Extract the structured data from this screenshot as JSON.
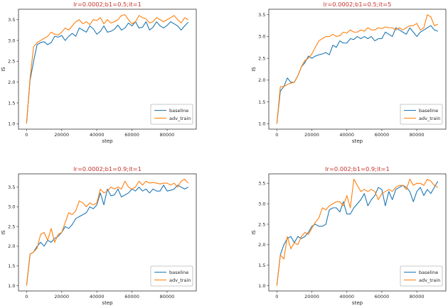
{
  "figure": {
    "background": "#ffffff",
    "colors": {
      "title": "#c5332b",
      "baseline": "#1f77b4",
      "adv_train": "#ff7f0e",
      "text": "#262626",
      "spine": "#4a4a4a",
      "legend_border": "#b9b9b9"
    }
  },
  "chart_data": [
    {
      "type": "line",
      "title": "lr=0.0002;b1=0.5;it=1",
      "xlabel": "step",
      "ylabel": "IS",
      "xlim": [
        -4600,
        96600
      ],
      "ylim": [
        0.869,
        3.751
      ],
      "grid": false,
      "legend_position": "lower right",
      "legend": [
        "baseline",
        "adv_train"
      ],
      "xticks": [
        [
          0,
          "0"
        ],
        [
          20000,
          "20000"
        ],
        [
          40000,
          "40000"
        ],
        [
          60000,
          "60000"
        ],
        [
          80000,
          "80000"
        ]
      ],
      "yticks": [
        [
          1.0,
          "1.0"
        ],
        [
          1.5,
          "1.5"
        ],
        [
          2.0,
          "2.0"
        ],
        [
          2.5,
          "2.5"
        ],
        [
          3.0,
          "3.0"
        ],
        [
          3.5,
          "3.5"
        ]
      ],
      "x": [
        0,
        2000,
        4000,
        6000,
        8000,
        10000,
        12000,
        14000,
        16000,
        18000,
        20000,
        22000,
        24000,
        26000,
        28000,
        30000,
        32000,
        34000,
        36000,
        38000,
        40000,
        42000,
        44000,
        46000,
        48000,
        50000,
        52000,
        54000,
        56000,
        58000,
        60000,
        62000,
        64000,
        66000,
        68000,
        70000,
        72000,
        74000,
        76000,
        78000,
        80000,
        82000,
        84000,
        86000,
        88000,
        90000,
        92000
      ],
      "series": [
        {
          "name": "baseline",
          "color": "#1f77b4",
          "values": [
            1.02,
            2.05,
            2.5,
            2.9,
            2.95,
            2.97,
            2.9,
            2.95,
            3.1,
            3.08,
            3.12,
            3.0,
            3.1,
            3.17,
            3.1,
            3.3,
            3.25,
            3.2,
            3.35,
            3.28,
            3.15,
            3.22,
            3.35,
            3.2,
            3.22,
            3.27,
            3.37,
            3.25,
            3.3,
            3.42,
            3.35,
            3.45,
            3.3,
            3.32,
            3.45,
            3.25,
            3.32,
            3.45,
            3.35,
            3.3,
            3.36,
            3.45,
            3.4,
            3.35,
            3.25,
            3.35,
            3.44
          ]
        },
        {
          "name": "adv_train",
          "color": "#ff7f0e",
          "values": [
            1.0,
            2.1,
            2.85,
            2.95,
            3.0,
            3.05,
            3.1,
            3.2,
            3.15,
            3.13,
            3.2,
            3.3,
            3.25,
            3.35,
            3.45,
            3.5,
            3.4,
            3.45,
            3.38,
            3.5,
            3.48,
            3.55,
            3.4,
            3.5,
            3.42,
            3.45,
            3.5,
            3.6,
            3.62,
            3.5,
            3.4,
            3.45,
            3.6,
            3.55,
            3.52,
            3.42,
            3.45,
            3.55,
            3.5,
            3.45,
            3.5,
            3.55,
            3.6,
            3.5,
            3.42,
            3.55,
            3.5
          ]
        }
      ]
    },
    {
      "type": "line",
      "title": "lr=0.0002;b1=0.5;it=5",
      "xlabel": "step",
      "ylabel": "IS",
      "xlim": [
        -4600,
        96600
      ],
      "ylim": [
        0.875,
        3.625
      ],
      "grid": false,
      "legend_position": "lower right",
      "legend": [
        "baseline",
        "adv_train"
      ],
      "xticks": [
        [
          0,
          "0"
        ],
        [
          20000,
          "20000"
        ],
        [
          40000,
          "40000"
        ],
        [
          60000,
          "60000"
        ],
        [
          80000,
          "80000"
        ]
      ],
      "yticks": [
        [
          1.0,
          "1.0"
        ],
        [
          1.5,
          "1.5"
        ],
        [
          2.0,
          "2.0"
        ],
        [
          2.5,
          "2.5"
        ],
        [
          3.0,
          "3.0"
        ],
        [
          3.5,
          "3.5"
        ]
      ],
      "x": [
        0,
        2000,
        4000,
        6000,
        8000,
        10000,
        12000,
        14000,
        16000,
        18000,
        20000,
        22000,
        24000,
        26000,
        28000,
        30000,
        32000,
        34000,
        36000,
        38000,
        40000,
        42000,
        44000,
        46000,
        48000,
        50000,
        52000,
        54000,
        56000,
        58000,
        60000,
        62000,
        64000,
        66000,
        68000,
        70000,
        72000,
        74000,
        76000,
        78000,
        80000,
        82000,
        84000,
        86000,
        88000,
        90000,
        92000
      ],
      "series": [
        {
          "name": "baseline",
          "color": "#1f77b4",
          "values": [
            1.0,
            1.75,
            1.85,
            2.05,
            1.95,
            1.95,
            2.1,
            2.3,
            2.4,
            2.55,
            2.5,
            2.55,
            2.58,
            2.6,
            2.63,
            2.58,
            2.8,
            2.75,
            2.9,
            2.85,
            2.85,
            2.95,
            2.93,
            3.0,
            2.95,
            3.0,
            2.95,
            3.0,
            2.9,
            2.95,
            2.95,
            3.1,
            3.05,
            3.0,
            3.2,
            3.15,
            3.1,
            3.05,
            3.2,
            3.1,
            3.0,
            3.1,
            3.15,
            3.2,
            3.25,
            3.15,
            3.12
          ]
        },
        {
          "name": "adv_train",
          "color": "#ff7f0e",
          "values": [
            1.0,
            1.85,
            1.85,
            1.9,
            1.93,
            1.95,
            2.1,
            2.3,
            2.45,
            2.5,
            2.6,
            2.75,
            2.9,
            2.95,
            3.0,
            3.0,
            3.05,
            3.0,
            3.02,
            3.1,
            3.08,
            3.15,
            3.1,
            3.1,
            3.15,
            3.12,
            3.2,
            3.15,
            3.15,
            3.2,
            3.18,
            3.22,
            3.2,
            3.2,
            3.15,
            3.2,
            3.15,
            3.2,
            3.25,
            3.25,
            3.3,
            3.15,
            3.2,
            3.5,
            3.45,
            3.25,
            3.28
          ]
        }
      ]
    },
    {
      "type": "line",
      "title": "lr=0.0002;b1=0.9;it=1",
      "xlabel": "step",
      "ylabel": "IS",
      "xlim": [
        -4600,
        96600
      ],
      "ylim": [
        0.865,
        3.835
      ],
      "grid": false,
      "legend_position": "lower right",
      "legend": [
        "baseline",
        "adv_train"
      ],
      "xticks": [
        [
          0,
          "0"
        ],
        [
          20000,
          "20000"
        ],
        [
          40000,
          "40000"
        ],
        [
          60000,
          "60000"
        ],
        [
          80000,
          "80000"
        ]
      ],
      "yticks": [
        [
          1.0,
          "1.0"
        ],
        [
          1.5,
          "1.5"
        ],
        [
          2.0,
          "2.0"
        ],
        [
          2.5,
          "2.5"
        ],
        [
          3.0,
          "3.0"
        ],
        [
          3.5,
          "3.5"
        ]
      ],
      "x": [
        0,
        2000,
        4000,
        6000,
        8000,
        10000,
        12000,
        14000,
        16000,
        18000,
        20000,
        22000,
        24000,
        26000,
        28000,
        30000,
        32000,
        34000,
        36000,
        38000,
        40000,
        42000,
        44000,
        46000,
        48000,
        50000,
        52000,
        54000,
        56000,
        58000,
        60000,
        62000,
        64000,
        66000,
        68000,
        70000,
        72000,
        74000,
        76000,
        78000,
        80000,
        82000,
        84000,
        86000,
        88000,
        90000,
        92000
      ],
      "series": [
        {
          "name": "baseline",
          "color": "#1f77b4",
          "values": [
            1.0,
            1.8,
            1.85,
            2.0,
            2.1,
            2.0,
            2.15,
            2.1,
            2.2,
            2.25,
            2.35,
            2.5,
            2.45,
            2.55,
            2.7,
            2.75,
            2.8,
            2.85,
            3.0,
            2.95,
            3.05,
            3.35,
            3.05,
            3.45,
            3.28,
            3.3,
            3.45,
            3.25,
            3.3,
            3.35,
            3.45,
            3.4,
            3.5,
            3.4,
            3.45,
            3.35,
            3.45,
            3.4,
            3.4,
            3.55,
            3.4,
            3.42,
            3.45,
            3.55,
            3.5,
            3.45,
            3.5
          ]
        },
        {
          "name": "adv_train",
          "color": "#ff7f0e",
          "values": [
            1.0,
            1.8,
            1.85,
            1.95,
            2.3,
            2.35,
            2.15,
            2.45,
            2.1,
            2.3,
            2.35,
            2.6,
            2.85,
            2.8,
            2.9,
            3.15,
            3.1,
            3.0,
            3.1,
            3.05,
            3.1,
            3.45,
            3.35,
            3.4,
            3.5,
            3.45,
            3.5,
            3.45,
            3.65,
            3.5,
            3.45,
            3.5,
            3.65,
            3.55,
            3.65,
            3.6,
            3.62,
            3.6,
            3.58,
            3.6,
            3.6,
            3.55,
            3.6,
            3.5,
            3.65,
            3.7,
            3.6
          ]
        }
      ]
    },
    {
      "type": "line",
      "title": "lr=0.002;b1=0.9;it=1",
      "xlabel": "step",
      "ylabel": "IS",
      "xlim": [
        -4600,
        96600
      ],
      "ylim": [
        0.87,
        3.73
      ],
      "grid": false,
      "legend_position": "lower right",
      "legend": [
        "baseline",
        "adv_train"
      ],
      "xticks": [
        [
          0,
          "0"
        ],
        [
          20000,
          "20000"
        ],
        [
          40000,
          "40000"
        ],
        [
          60000,
          "60000"
        ],
        [
          80000,
          "80000"
        ]
      ],
      "yticks": [
        [
          1.0,
          "1.0"
        ],
        [
          1.5,
          "1.5"
        ],
        [
          2.0,
          "2.0"
        ],
        [
          2.5,
          "2.5"
        ],
        [
          3.0,
          "3.0"
        ],
        [
          3.5,
          "3.5"
        ]
      ],
      "x": [
        0,
        2000,
        4000,
        6000,
        8000,
        10000,
        12000,
        14000,
        16000,
        18000,
        20000,
        22000,
        24000,
        26000,
        28000,
        30000,
        32000,
        34000,
        36000,
        38000,
        40000,
        42000,
        44000,
        46000,
        48000,
        50000,
        52000,
        54000,
        56000,
        58000,
        60000,
        62000,
        64000,
        66000,
        68000,
        70000,
        72000,
        74000,
        76000,
        78000,
        80000,
        82000,
        84000,
        86000,
        88000,
        90000,
        92000
      ],
      "series": [
        {
          "name": "baseline",
          "color": "#1f77b4",
          "values": [
            1.0,
            1.75,
            2.0,
            2.15,
            2.2,
            2.05,
            2.2,
            2.15,
            2.2,
            2.3,
            2.45,
            2.5,
            2.45,
            2.45,
            2.5,
            2.85,
            2.9,
            2.9,
            2.8,
            3.05,
            2.75,
            2.75,
            2.9,
            3.0,
            3.1,
            3.25,
            2.95,
            3.1,
            3.2,
            3.4,
            3.35,
            2.95,
            3.3,
            3.1,
            3.35,
            3.4,
            3.45,
            3.4,
            3.3,
            3.05,
            3.3,
            3.4,
            3.2,
            3.35,
            3.25,
            3.4,
            3.55
          ]
        },
        {
          "name": "adv_train",
          "color": "#ff7f0e",
          "values": [
            1.0,
            1.75,
            1.65,
            2.2,
            1.9,
            2.05,
            2.0,
            2.2,
            2.3,
            2.25,
            2.4,
            2.55,
            2.65,
            2.9,
            2.85,
            2.95,
            3.0,
            3.05,
            3.05,
            2.95,
            3.2,
            2.9,
            3.6,
            3.45,
            3.3,
            3.35,
            3.3,
            3.35,
            3.3,
            3.1,
            3.25,
            3.3,
            3.35,
            3.3,
            3.4,
            3.45,
            3.45,
            3.35,
            3.6,
            3.45,
            3.5,
            3.5,
            3.45,
            3.6,
            3.55,
            3.45,
            3.4
          ]
        }
      ]
    }
  ]
}
